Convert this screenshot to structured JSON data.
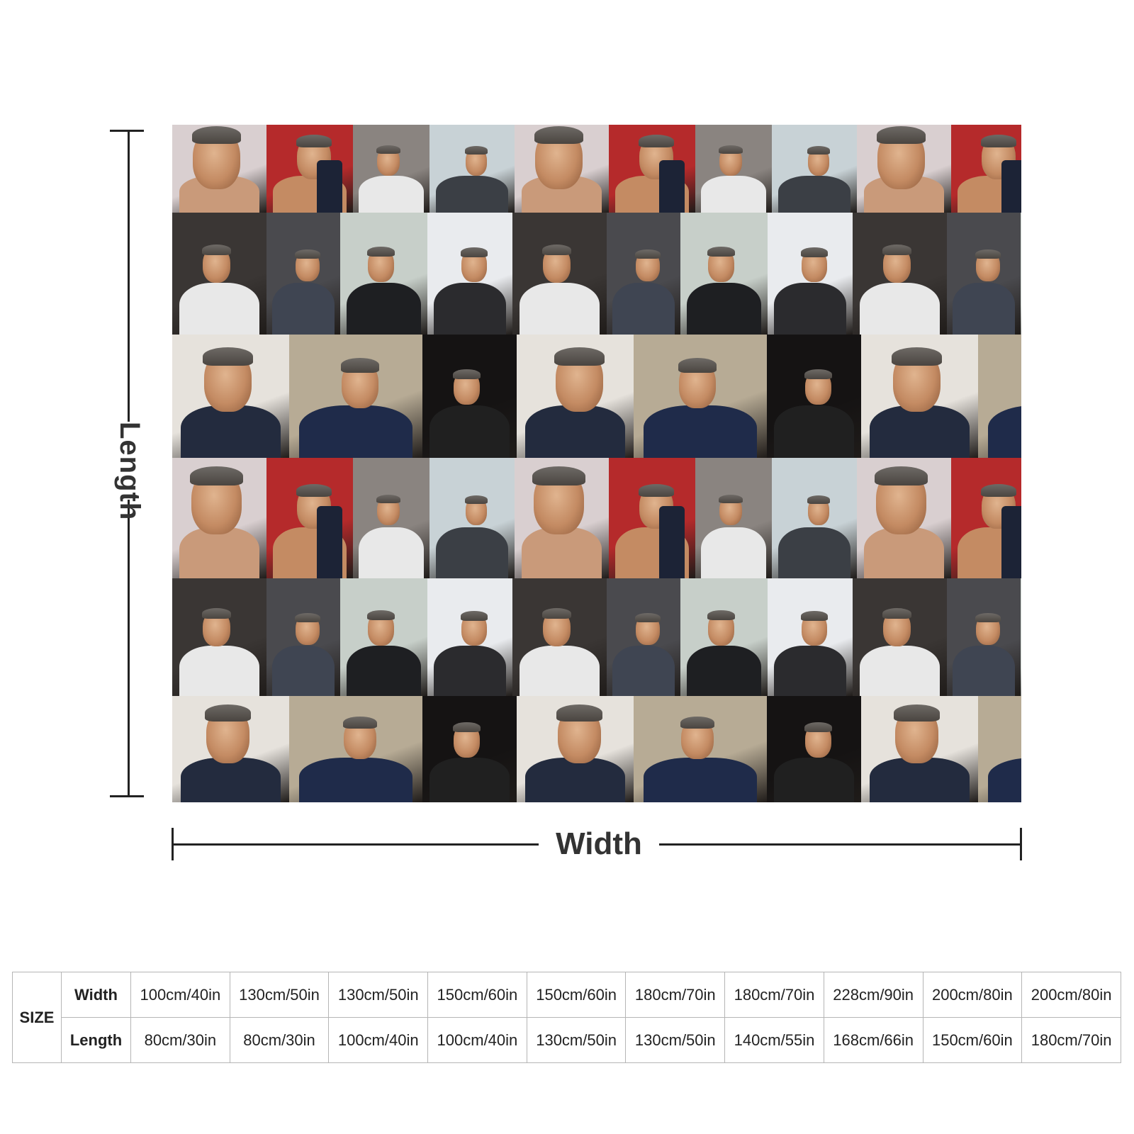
{
  "diagram": {
    "length_label": "Length",
    "width_label": "Width"
  },
  "size_table": {
    "size_label": "SIZE",
    "width_label": "Width",
    "length_label": "Length",
    "widths": [
      "100cm/40in",
      "130cm/50in",
      "130cm/50in",
      "150cm/60in",
      "150cm/60in",
      "180cm/70in",
      "180cm/70in",
      "228cm/90in",
      "200cm/80in",
      "200cm/80in"
    ],
    "lengths": [
      "80cm/30in",
      "80cm/30in",
      "100cm/40in",
      "100cm/40in",
      "130cm/50in",
      "130cm/50in",
      "140cm/55in",
      "168cm/66in",
      "150cm/60in",
      "180cm/70in"
    ]
  }
}
